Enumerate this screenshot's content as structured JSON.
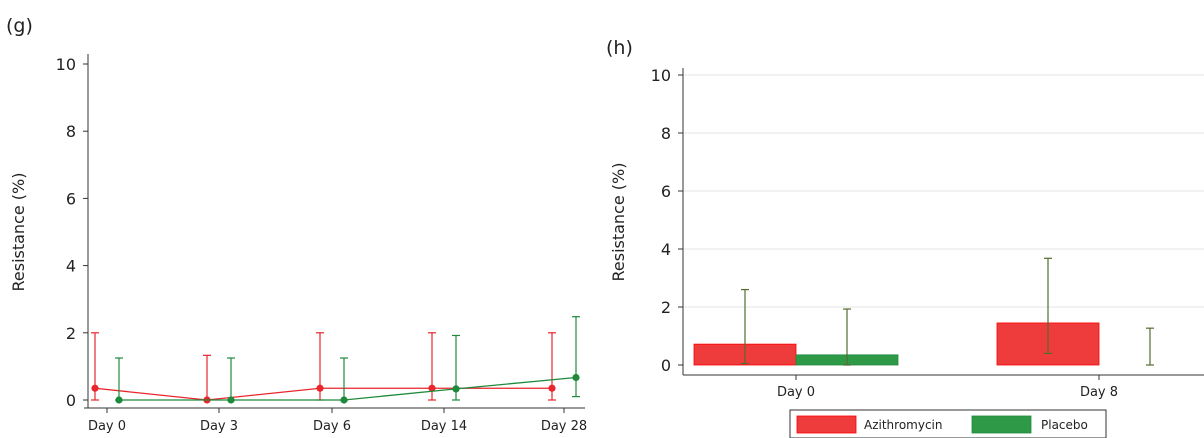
{
  "chart_data": [
    {
      "panel_label": "(g)",
      "type": "line",
      "ylabel": "Resistance (%)",
      "categories": [
        "Day 0",
        "Day 3",
        "Day 6",
        "Day 14",
        "Day 28"
      ],
      "ylim": [
        0,
        10
      ],
      "yticks": [
        "0",
        "2",
        "4",
        "6",
        "8",
        "10"
      ],
      "grid": false,
      "series": [
        {
          "color": "#e8262b",
          "values": [
            0.35,
            0.0,
            0.35,
            0.35,
            0.35
          ],
          "err_low": [
            0.0,
            0.0,
            0.0,
            0.0,
            0.0
          ],
          "err_high": [
            2.0,
            1.33,
            2.0,
            2.0,
            2.0
          ]
        },
        {
          "color": "#1f8a3c",
          "values": [
            0.0,
            0.0,
            0.0,
            0.33,
            0.67
          ],
          "err_low": [
            0.0,
            0.0,
            0.0,
            0.0,
            0.1
          ],
          "err_high": [
            1.25,
            1.25,
            1.25,
            1.92,
            2.48
          ]
        }
      ]
    },
    {
      "panel_label": "(h)",
      "type": "bar",
      "ylabel": "Resistance (%)",
      "categories": [
        "Day 0",
        "Day 8"
      ],
      "ylim": [
        0,
        10
      ],
      "yticks": [
        "0",
        "2",
        "4",
        "6",
        "8",
        "10"
      ],
      "grid": true,
      "legend_position": "bottom",
      "series": [
        {
          "name": "Azithromycin",
          "color": "#ee3b3b",
          "edge": "#ff0000",
          "values": [
            0.72,
            1.45
          ],
          "err_low": [
            0.05,
            0.4
          ],
          "err_high": [
            2.6,
            3.68
          ]
        },
        {
          "name": "Placebo",
          "color": "#2e9947",
          "edge": "#1f8a3c",
          "values": [
            0.35,
            0.0
          ],
          "err_low": [
            0.0,
            0.0
          ],
          "err_high": [
            1.93,
            1.27
          ]
        }
      ]
    }
  ]
}
